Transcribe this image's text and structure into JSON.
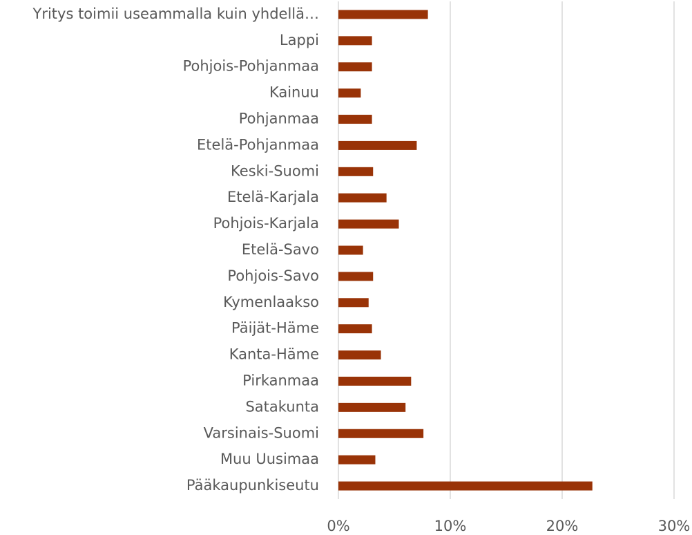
{
  "chart_data": {
    "type": "barh",
    "categories": [
      "Yritys toimii useammalla kuin yhdellä…",
      "Lappi",
      "Pohjois-Pohjanmaa",
      "Kainuu",
      "Pohjanmaa",
      "Etelä-Pohjanmaa",
      "Keski-Suomi",
      "Etelä-Karjala",
      "Pohjois-Karjala",
      "Etelä-Savo",
      "Pohjois-Savo",
      "Kymenlaakso",
      "Päijät-Häme",
      "Kanta-Häme",
      "Pirkanmaa",
      "Satakunta",
      "Varsinais-Suomi",
      "Muu Uusimaa",
      "Pääkaupunkiseutu"
    ],
    "values": [
      8.0,
      3.0,
      3.0,
      2.0,
      3.0,
      7.0,
      3.1,
      4.3,
      5.4,
      2.2,
      3.1,
      2.7,
      3.0,
      3.8,
      6.5,
      6.0,
      7.6,
      3.3,
      22.7
    ],
    "color": "#993307",
    "xlim": [
      0,
      30
    ],
    "xticks": [
      {
        "value": 0,
        "label": "0%"
      },
      {
        "value": 10,
        "label": "10%"
      },
      {
        "value": 20,
        "label": "20%"
      },
      {
        "value": 30,
        "label": "30%"
      }
    ],
    "grid": true
  }
}
